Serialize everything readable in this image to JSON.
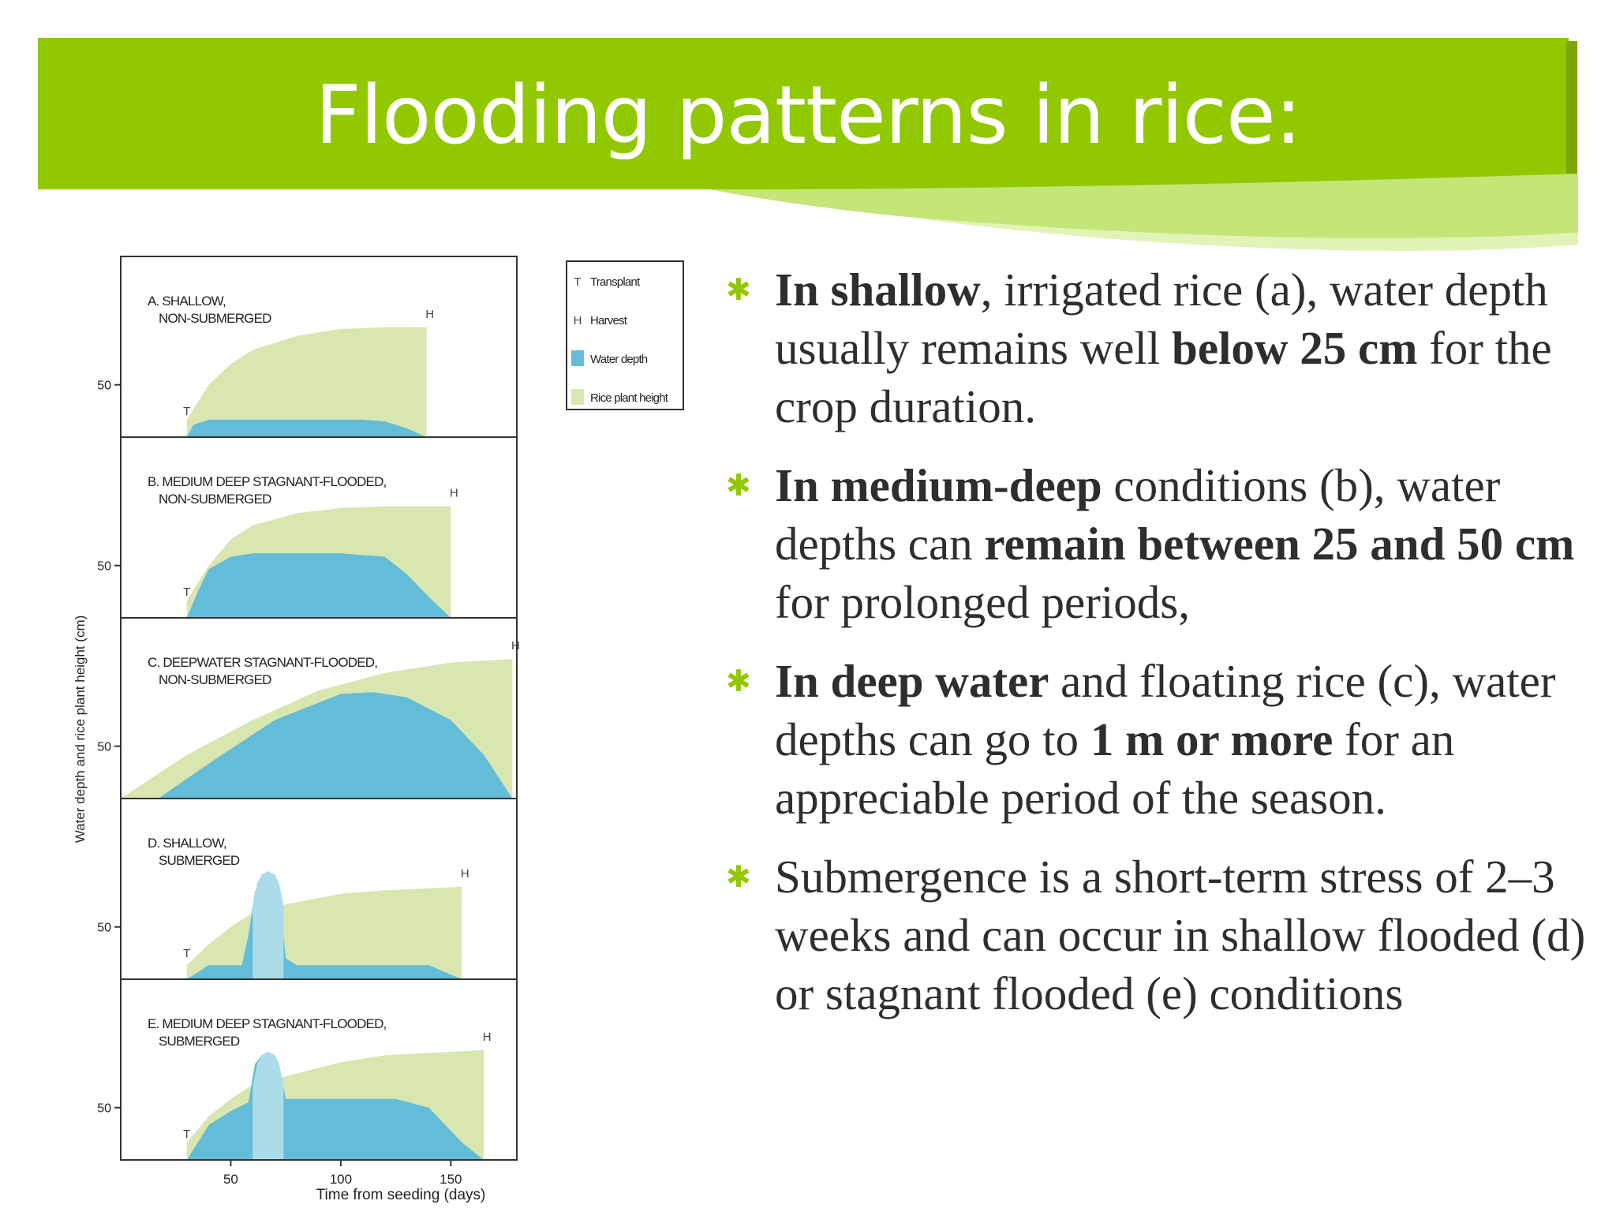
{
  "slide": {
    "title": "Flooding patterns in rice:",
    "accent_color": "#91c800"
  },
  "bullets": [
    {
      "parts": [
        {
          "text": "In shallow",
          "bold": true
        },
        {
          "text": ", irrigated rice (a), water depth usually remains well ",
          "bold": false
        },
        {
          "text": "below 25 cm",
          "bold": true
        },
        {
          "text": " for the crop duration.",
          "bold": false
        }
      ]
    },
    {
      "parts": [
        {
          "text": "In medium-deep",
          "bold": true
        },
        {
          "text": " conditions (b), water depths can ",
          "bold": false
        },
        {
          "text": "remain between 25 and 50 cm",
          "bold": true
        },
        {
          "text": " for prolonged periods,",
          "bold": false
        }
      ]
    },
    {
      "parts": [
        {
          "text": " In deep water",
          "bold": true
        },
        {
          "text": " and floating rice (c), water depths can go to ",
          "bold": false
        },
        {
          "text": "1 m or more",
          "bold": true
        },
        {
          "text": " for an appreciable period of the season.",
          "bold": false
        }
      ]
    },
    {
      "parts": [
        {
          "text": "Submergence is a short-term stress of 2–3 weeks and can occur in shallow flooded (d) or stagnant flooded (e) conditions",
          "bold": false
        }
      ]
    }
  ],
  "chart_data": {
    "type": "area",
    "ylabel": "Water depth and rice plant height (cm)",
    "xlabel": "Time from seeding (days)",
    "x_ticks": [
      50,
      100,
      150
    ],
    "xlim": [
      0,
      180
    ],
    "y_tick_label": 50,
    "ylim_per_panel": [
      0,
      100
    ],
    "colors": {
      "water": "#63bcd8",
      "plant": "#d8e6b0",
      "submerged_peak": "#abdcea"
    },
    "legend": {
      "placement": "top-right of panel A",
      "entries": [
        {
          "key": "T",
          "label": "Transplant"
        },
        {
          "key": "H",
          "label": "Harvest"
        },
        {
          "swatch": "water",
          "label": "Water depth"
        },
        {
          "swatch": "plant",
          "label": "Rice plant height"
        }
      ]
    },
    "panels": [
      {
        "name": "A. SHALLOW,",
        "name2": "NON-SUBMERGED",
        "transplant_day": 30,
        "harvest_day": 139,
        "plant_height": {
          "x": [
            30,
            40,
            50,
            60,
            80,
            100,
            120,
            139
          ],
          "y": [
            10,
            30,
            42,
            50,
            58,
            62,
            63,
            63
          ]
        },
        "water_depth": {
          "x": [
            30,
            33,
            40,
            60,
            80,
            100,
            110,
            120,
            130,
            139
          ],
          "y": [
            0,
            7,
            10,
            10,
            10,
            10,
            10,
            9,
            5,
            0
          ]
        }
      },
      {
        "name": "B. MEDIUM DEEP STAGNANT-FLOODED,",
        "name2": "NON-SUBMERGED",
        "transplant_day": 30,
        "harvest_day": 150,
        "plant_height": {
          "x": [
            30,
            40,
            50,
            60,
            80,
            100,
            120,
            150
          ],
          "y": [
            10,
            30,
            45,
            53,
            60,
            63,
            64,
            64
          ]
        },
        "water_depth": {
          "x": [
            30,
            35,
            40,
            50,
            60,
            100,
            120,
            130,
            140,
            150
          ],
          "y": [
            0,
            15,
            28,
            35,
            37,
            37,
            35,
            25,
            12,
            0
          ]
        }
      },
      {
        "name": "C. DEEPWATER STAGNANT-FLOODED,",
        "name2": "NON-SUBMERGED",
        "transplant_day": null,
        "harvest_day": 178,
        "plant_height": {
          "x": [
            0,
            30,
            60,
            90,
            120,
            150,
            178
          ],
          "y": [
            0,
            25,
            45,
            62,
            72,
            78,
            80
          ]
        },
        "water_depth": {
          "x": [
            17,
            40,
            70,
            100,
            115,
            130,
            150,
            165,
            178
          ],
          "y": [
            0,
            20,
            45,
            60,
            61,
            58,
            45,
            25,
            0
          ]
        }
      },
      {
        "name": "D. SHALLOW,",
        "name2": "SUBMERGED",
        "transplant_day": 30,
        "harvest_day": 155,
        "plant_height": {
          "x": [
            30,
            40,
            50,
            60,
            75,
            100,
            120,
            155
          ],
          "y": [
            8,
            20,
            30,
            38,
            43,
            49,
            51,
            53
          ]
        },
        "water_depth": {
          "x": [
            30,
            40,
            55,
            58,
            61,
            64,
            67,
            70,
            72,
            75,
            80,
            100,
            120,
            140,
            155
          ],
          "y": [
            0,
            8,
            8,
            25,
            50,
            58,
            60,
            58,
            50,
            12,
            8,
            8,
            8,
            8,
            0
          ]
        },
        "submerged_peak": {
          "x": [
            60,
            62,
            64,
            67,
            70,
            72,
            74
          ],
          "y": [
            42,
            55,
            60,
            62,
            60,
            55,
            42
          ]
        }
      },
      {
        "name": "E. MEDIUM DEEP STAGNANT-FLOODED,",
        "name2": "SUBMERGED",
        "transplant_day": 30,
        "harvest_day": 165,
        "plant_height": {
          "x": [
            30,
            40,
            50,
            60,
            75,
            100,
            120,
            165
          ],
          "y": [
            10,
            25,
            35,
            43,
            48,
            56,
            60,
            63
          ]
        },
        "water_depth": {
          "x": [
            30,
            40,
            50,
            58,
            61,
            64,
            67,
            70,
            72,
            75,
            80,
            100,
            125,
            140,
            155,
            165
          ],
          "y": [
            0,
            20,
            28,
            33,
            55,
            60,
            62,
            60,
            55,
            35,
            35,
            35,
            35,
            30,
            10,
            0
          ]
        },
        "submerged_peak": {
          "x": [
            60,
            62,
            64,
            67,
            70,
            72,
            74
          ],
          "y": [
            42,
            55,
            60,
            62,
            60,
            55,
            42
          ]
        }
      }
    ]
  }
}
